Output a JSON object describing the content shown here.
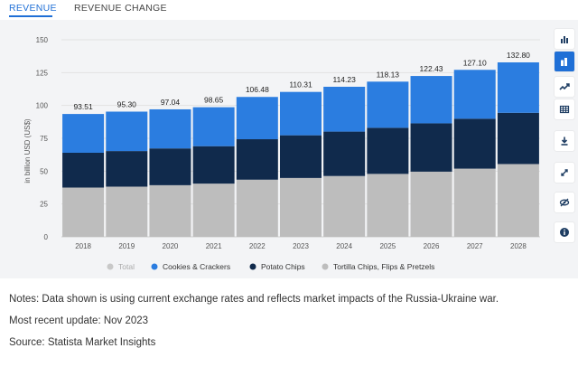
{
  "tabs": {
    "revenue": "REVENUE",
    "revenue_change": "REVENUE CHANGE"
  },
  "toolbar": {
    "colors": {
      "active": "#1f6fd6",
      "icon": "#1f3e63"
    },
    "buttons": [
      {
        "icon": "bar-chart-icon",
        "active": false
      },
      {
        "icon": "stacked-bar-icon",
        "active": true
      },
      {
        "icon": "line-chart-icon",
        "active": false
      },
      {
        "icon": "table-icon",
        "active": false
      },
      {
        "icon": "download-icon",
        "active": false
      },
      {
        "icon": "expand-icon",
        "active": false
      },
      {
        "icon": "hide-icon",
        "active": false
      },
      {
        "icon": "info-icon",
        "active": false
      }
    ]
  },
  "chart_data": {
    "type": "bar",
    "stacked": true,
    "categories": [
      "2018",
      "2019",
      "2020",
      "2021",
      "2022",
      "2023",
      "2024",
      "2025",
      "2026",
      "2027",
      "2028"
    ],
    "totals": [
      "93.51",
      "95.30",
      "97.04",
      "98.65",
      "106.48",
      "110.31",
      "114.23",
      "118.13",
      "122.43",
      "127.10",
      "132.80"
    ],
    "series": [
      {
        "name": "Tortilla Chips, Flips & Pretzels",
        "color": "#bdbdbd",
        "values": [
          37.5,
          38.2,
          39.3,
          40.5,
          43.5,
          44.8,
          46.3,
          47.9,
          49.6,
          51.9,
          55.4
        ]
      },
      {
        "name": "Potato Chips",
        "color": "#102a4c",
        "values": [
          26.5,
          27.1,
          28.0,
          28.5,
          30.8,
          32.5,
          33.8,
          35.1,
          36.8,
          38.0,
          39.0
        ]
      },
      {
        "name": "Cookies & Crackers",
        "color": "#2b7de0",
        "values": [
          29.51,
          30.0,
          29.74,
          29.65,
          32.18,
          33.01,
          34.13,
          35.13,
          36.03,
          37.2,
          38.4
        ]
      }
    ],
    "legend": [
      {
        "name": "Total",
        "color": "#c8c8c8"
      },
      {
        "name": "Cookies & Crackers",
        "color": "#2b7de0"
      },
      {
        "name": "Potato Chips",
        "color": "#102a4c"
      },
      {
        "name": "Tortilla Chips, Flips & Pretzels",
        "color": "#bdbdbd"
      }
    ],
    "ylabel": "in billion USD (US$)",
    "yticks": [
      0,
      25,
      50,
      75,
      100,
      125,
      150
    ],
    "ylim": [
      0,
      150
    ],
    "grid": true,
    "legend_position": "bottom"
  },
  "notes": {
    "text": "Notes: Data shown is using current exchange rates and reflects market impacts of the Russia-Ukraine war.",
    "update": "Most recent update: Nov 2023",
    "source": "Source: Statista Market Insights"
  }
}
